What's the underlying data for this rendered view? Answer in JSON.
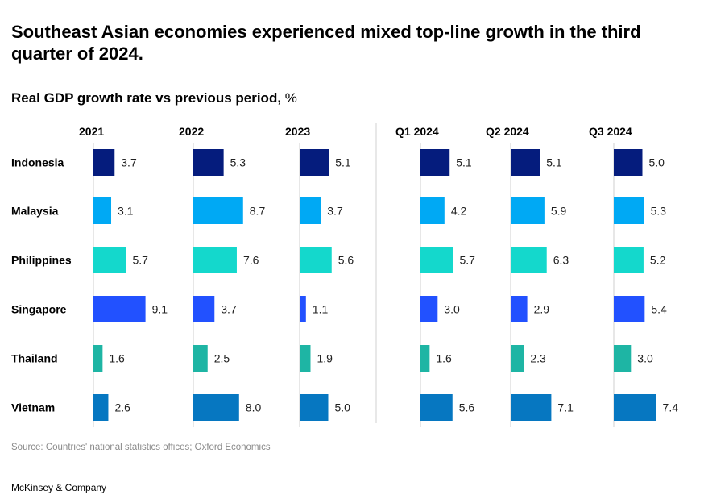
{
  "title": "Southeast Asian economies experienced mixed top-line growth in the third quarter of 2024.",
  "subtitle": "Real GDP growth rate vs previous period,",
  "unit": "%",
  "source": "Source: Countries' national statistics offices; Oxford Economics",
  "brand": "McKinsey & Company",
  "chart_data": {
    "type": "bar",
    "orientation": "horizontal",
    "layout": "small-multiples",
    "title": "Southeast Asian economies experienced mixed top-line growth in the third quarter of 2024.",
    "subtitle": "Real GDP growth rate vs previous period, %",
    "categories": [
      "Indonesia",
      "Malaysia",
      "Philippines",
      "Singapore",
      "Thailand",
      "Vietnam"
    ],
    "colors": {
      "Indonesia": "#051c7d",
      "Malaysia": "#00a9f4",
      "Philippines": "#14d8cc",
      "Singapore": "#2251ff",
      "Thailand": "#1eb5a4",
      "Vietnam": "#0677c1",
      "axis": "#cfcfcf",
      "divider": "#d0d0d0"
    },
    "series": [
      {
        "name": "2021",
        "values": [
          3.7,
          3.1,
          5.7,
          9.1,
          1.6,
          2.6
        ]
      },
      {
        "name": "2022",
        "values": [
          5.3,
          8.7,
          7.6,
          3.7,
          2.5,
          8.0
        ]
      },
      {
        "name": "2023",
        "values": [
          5.1,
          3.7,
          5.6,
          1.1,
          1.9,
          5.0
        ]
      },
      {
        "name": "Q1 2024",
        "values": [
          5.1,
          4.2,
          5.7,
          3.0,
          1.6,
          5.6
        ]
      },
      {
        "name": "Q2 2024",
        "values": [
          5.1,
          5.9,
          6.3,
          2.9,
          2.3,
          7.1
        ]
      },
      {
        "name": "Q3 2024",
        "values": [
          5.0,
          5.3,
          5.2,
          5.4,
          3.0,
          7.4
        ]
      }
    ],
    "xlim": [
      0,
      10
    ]
  }
}
